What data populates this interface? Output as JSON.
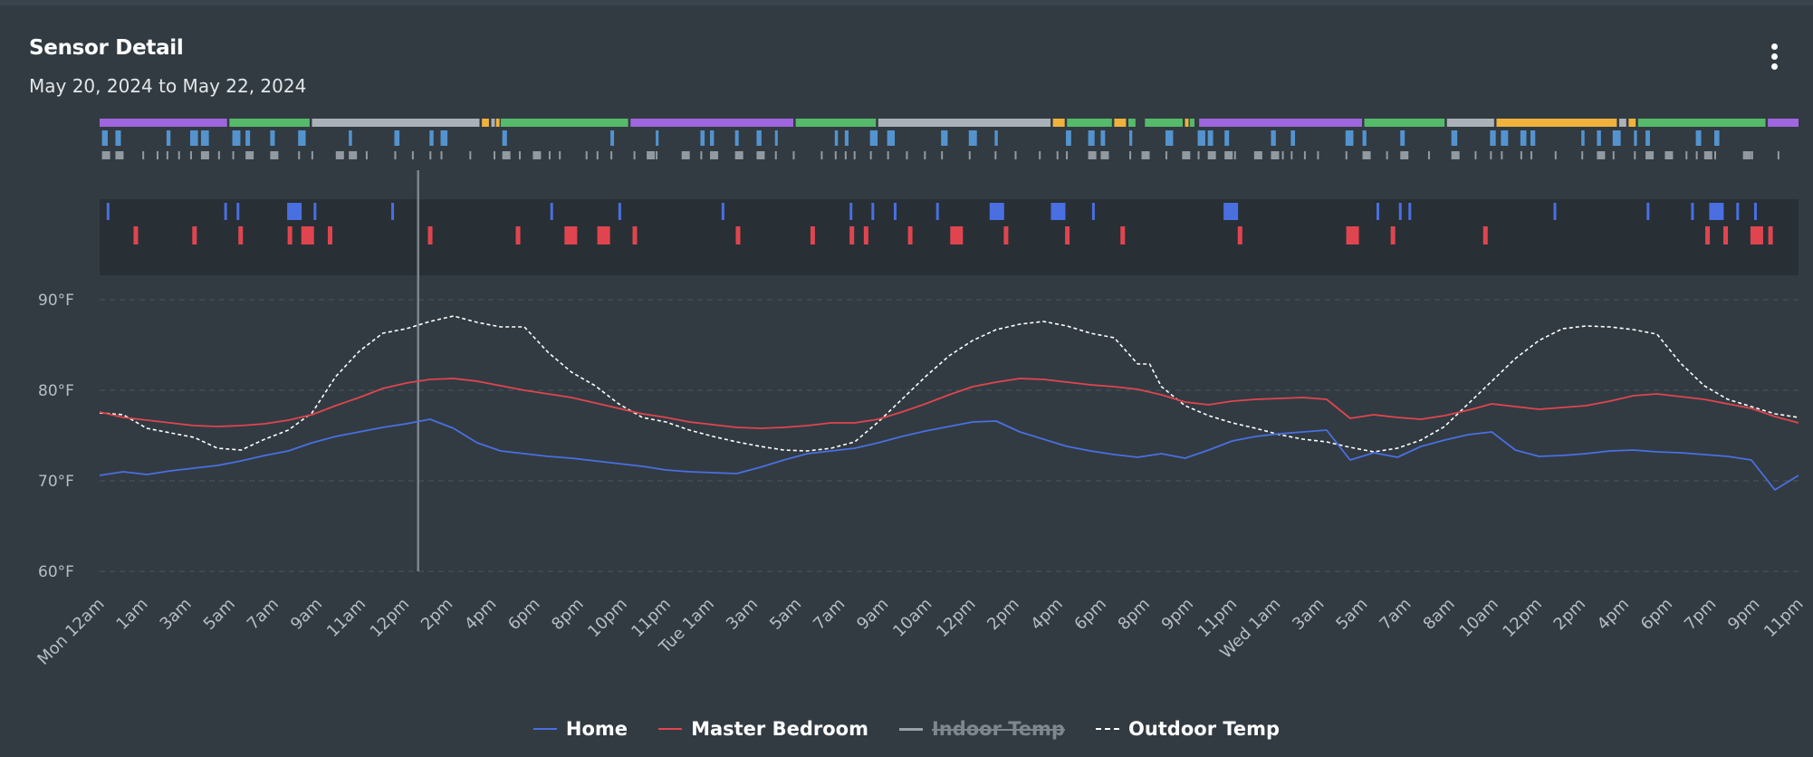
{
  "card": {
    "title": "Sensor Detail",
    "subtitle": "May 20, 2024 to May 22, 2024"
  },
  "colors": {
    "background": "#323b42",
    "home": "#4a6fe0",
    "master_bedroom": "#e0454f",
    "indoor_temp": "#9aa3aa",
    "outdoor_temp": "#ffffff",
    "status_purple": "#a066e0",
    "status_green": "#55bb6a",
    "status_gray": "#aab1b8",
    "status_orange": "#f0b23d",
    "status_blue": "#5aa3e6",
    "motion_blue": "#4a6fe0",
    "motion_red": "#e0454f"
  },
  "chart_data": {
    "type": "line",
    "title": "Sensor Detail",
    "subtitle": "May 20, 2024 to May 22, 2024",
    "y_ticks": [
      "90°F",
      "80°F",
      "70°F",
      "60°F"
    ],
    "ylim": [
      60,
      90
    ],
    "x_tick_labels": [
      "Mon 12am",
      "1am",
      "3am",
      "5am",
      "7am",
      "9am",
      "11am",
      "12pm",
      "2pm",
      "4pm",
      "6pm",
      "8pm",
      "10pm",
      "11pm",
      "Tue 1am",
      "3am",
      "5am",
      "7am",
      "9am",
      "10am",
      "12pm",
      "2pm",
      "4pm",
      "6pm",
      "8pm",
      "9pm",
      "11pm",
      "Wed 1am",
      "3am",
      "5am",
      "7am",
      "8am",
      "10am",
      "12pm",
      "2pm",
      "4pm",
      "6pm",
      "7pm",
      "9pm",
      "11pm"
    ],
    "x_range_hours": [
      0,
      72
    ],
    "cursor_hour": 13.5,
    "legend": [
      {
        "name": "Home",
        "style": "solid",
        "hidden": false
      },
      {
        "name": "Master Bedroom",
        "style": "solid",
        "hidden": false
      },
      {
        "name": "Indoor Temp",
        "style": "solid",
        "hidden": true
      },
      {
        "name": "Outdoor Temp",
        "style": "dashed",
        "hidden": false
      }
    ],
    "series": [
      {
        "name": "Outdoor Temp",
        "points": [
          [
            0,
            77.5
          ],
          [
            1,
            77.3
          ],
          [
            2,
            75.8
          ],
          [
            3,
            75.3
          ],
          [
            4,
            74.8
          ],
          [
            5,
            73.6
          ],
          [
            6,
            73.4
          ],
          [
            7,
            74.6
          ],
          [
            8,
            75.6
          ],
          [
            9,
            77.5
          ],
          [
            10,
            81.5
          ],
          [
            11,
            84.3
          ],
          [
            12,
            86.3
          ],
          [
            13,
            86.8
          ],
          [
            14,
            87.6
          ],
          [
            15,
            88.2
          ],
          [
            16,
            87.5
          ],
          [
            17,
            87.0
          ],
          [
            18,
            87.0
          ],
          [
            19,
            84.2
          ],
          [
            20,
            82.0
          ],
          [
            21,
            80.5
          ],
          [
            22,
            78.5
          ],
          [
            23,
            77.0
          ],
          [
            24,
            76.5
          ],
          [
            25,
            75.6
          ],
          [
            26,
            74.9
          ],
          [
            27,
            74.3
          ],
          [
            28,
            73.8
          ],
          [
            29,
            73.4
          ],
          [
            30,
            73.3
          ],
          [
            31,
            73.6
          ],
          [
            32,
            74.3
          ],
          [
            33,
            76.5
          ],
          [
            34,
            79.0
          ],
          [
            35,
            81.5
          ],
          [
            36,
            83.8
          ],
          [
            37,
            85.5
          ],
          [
            38,
            86.7
          ],
          [
            39,
            87.3
          ],
          [
            40,
            87.6
          ],
          [
            41,
            87.1
          ],
          [
            42,
            86.3
          ],
          [
            43,
            85.8
          ],
          [
            44,
            82.9
          ],
          [
            44.5,
            82.9
          ],
          [
            45,
            80.4
          ],
          [
            46,
            78.3
          ],
          [
            47,
            77.2
          ],
          [
            48,
            76.4
          ],
          [
            49,
            75.8
          ],
          [
            50,
            75.1
          ],
          [
            51,
            74.6
          ],
          [
            52,
            74.3
          ],
          [
            53,
            73.7
          ],
          [
            54,
            73.2
          ],
          [
            55,
            73.6
          ],
          [
            56,
            74.5
          ],
          [
            57,
            76.0
          ],
          [
            58,
            78.5
          ],
          [
            59,
            81.0
          ],
          [
            60,
            83.5
          ],
          [
            61,
            85.5
          ],
          [
            62,
            86.8
          ],
          [
            63,
            87.1
          ],
          [
            64,
            87.0
          ],
          [
            65,
            86.7
          ],
          [
            66,
            86.2
          ],
          [
            67,
            83.0
          ],
          [
            68,
            80.5
          ],
          [
            69,
            79.0
          ],
          [
            70,
            78.2
          ],
          [
            71,
            77.4
          ],
          [
            72,
            77.0
          ]
        ]
      },
      {
        "name": "Master Bedroom",
        "points": [
          [
            0,
            77.6
          ],
          [
            1,
            77.0
          ],
          [
            2,
            76.7
          ],
          [
            3,
            76.4
          ],
          [
            4,
            76.1
          ],
          [
            5,
            76.0
          ],
          [
            6,
            76.1
          ],
          [
            7,
            76.3
          ],
          [
            8,
            76.7
          ],
          [
            9,
            77.3
          ],
          [
            10,
            78.3
          ],
          [
            11,
            79.2
          ],
          [
            12,
            80.2
          ],
          [
            13,
            80.8
          ],
          [
            14,
            81.2
          ],
          [
            15,
            81.3
          ],
          [
            16,
            81.0
          ],
          [
            17,
            80.5
          ],
          [
            18,
            80.0
          ],
          [
            19,
            79.6
          ],
          [
            20,
            79.2
          ],
          [
            21,
            78.6
          ],
          [
            22,
            78.0
          ],
          [
            23,
            77.4
          ],
          [
            24,
            77.0
          ],
          [
            25,
            76.5
          ],
          [
            26,
            76.2
          ],
          [
            27,
            75.9
          ],
          [
            28,
            75.8
          ],
          [
            29,
            75.9
          ],
          [
            30,
            76.1
          ],
          [
            31,
            76.4
          ],
          [
            32,
            76.4
          ],
          [
            33,
            76.8
          ],
          [
            34,
            77.6
          ],
          [
            35,
            78.5
          ],
          [
            36,
            79.5
          ],
          [
            37,
            80.4
          ],
          [
            38,
            80.9
          ],
          [
            39,
            81.3
          ],
          [
            40,
            81.2
          ],
          [
            41,
            80.9
          ],
          [
            42,
            80.6
          ],
          [
            43,
            80.4
          ],
          [
            44,
            80.1
          ],
          [
            45,
            79.5
          ],
          [
            46,
            78.7
          ],
          [
            47,
            78.4
          ],
          [
            48,
            78.8
          ],
          [
            49,
            79.0
          ],
          [
            50,
            79.1
          ],
          [
            51,
            79.2
          ],
          [
            52,
            79.0
          ],
          [
            53,
            76.9
          ],
          [
            54,
            77.3
          ],
          [
            55,
            77.0
          ],
          [
            56,
            76.8
          ],
          [
            57,
            77.2
          ],
          [
            58,
            77.8
          ],
          [
            59,
            78.5
          ],
          [
            60,
            78.2
          ],
          [
            61,
            77.9
          ],
          [
            62,
            78.1
          ],
          [
            63,
            78.3
          ],
          [
            64,
            78.8
          ],
          [
            65,
            79.4
          ],
          [
            66,
            79.6
          ],
          [
            67,
            79.3
          ],
          [
            68,
            79.0
          ],
          [
            69,
            78.5
          ],
          [
            70,
            78.0
          ],
          [
            71,
            77.1
          ],
          [
            72,
            76.4
          ]
        ]
      },
      {
        "name": "Home",
        "points": [
          [
            0,
            70.6
          ],
          [
            1,
            71.0
          ],
          [
            2,
            70.7
          ],
          [
            3,
            71.1
          ],
          [
            4,
            71.4
          ],
          [
            5,
            71.7
          ],
          [
            6,
            72.2
          ],
          [
            7,
            72.8
          ],
          [
            8,
            73.3
          ],
          [
            9,
            74.2
          ],
          [
            10,
            74.9
          ],
          [
            11,
            75.4
          ],
          [
            12,
            75.9
          ],
          [
            13,
            76.3
          ],
          [
            14,
            76.8
          ],
          [
            15,
            75.8
          ],
          [
            16,
            74.2
          ],
          [
            17,
            73.3
          ],
          [
            18,
            73.0
          ],
          [
            19,
            72.7
          ],
          [
            20,
            72.5
          ],
          [
            21,
            72.2
          ],
          [
            22,
            71.9
          ],
          [
            23,
            71.6
          ],
          [
            24,
            71.2
          ],
          [
            25,
            71.0
          ],
          [
            26,
            70.9
          ],
          [
            27,
            70.8
          ],
          [
            28,
            71.5
          ],
          [
            29,
            72.3
          ],
          [
            30,
            73.0
          ],
          [
            31,
            73.3
          ],
          [
            32,
            73.6
          ],
          [
            33,
            74.2
          ],
          [
            34,
            74.9
          ],
          [
            35,
            75.5
          ],
          [
            36,
            76.0
          ],
          [
            37,
            76.5
          ],
          [
            38,
            76.6
          ],
          [
            39,
            75.4
          ],
          [
            40,
            74.6
          ],
          [
            41,
            73.8
          ],
          [
            42,
            73.3
          ],
          [
            43,
            72.9
          ],
          [
            44,
            72.6
          ],
          [
            45,
            73.0
          ],
          [
            46,
            72.5
          ],
          [
            47,
            73.4
          ],
          [
            48,
            74.4
          ],
          [
            49,
            74.9
          ],
          [
            50,
            75.2
          ],
          [
            51,
            75.4
          ],
          [
            52,
            75.6
          ],
          [
            53,
            72.3
          ],
          [
            54,
            73.1
          ],
          [
            55,
            72.6
          ],
          [
            56,
            73.8
          ],
          [
            57,
            74.5
          ],
          [
            58,
            75.1
          ],
          [
            59,
            75.4
          ],
          [
            60,
            73.4
          ],
          [
            61,
            72.7
          ],
          [
            62,
            72.8
          ],
          [
            63,
            73.0
          ],
          [
            64,
            73.3
          ],
          [
            65,
            73.4
          ],
          [
            66,
            73.2
          ],
          [
            67,
            73.1
          ],
          [
            68,
            72.9
          ],
          [
            69,
            72.7
          ],
          [
            70,
            72.3
          ],
          [
            71,
            69.0
          ],
          [
            72,
            70.6
          ]
        ]
      }
    ],
    "status_timeline_row1": [
      {
        "start": 0,
        "end": 5.4,
        "color": "purple"
      },
      {
        "start": 5.5,
        "end": 8.9,
        "color": "green"
      },
      {
        "start": 9.0,
        "end": 16.1,
        "color": "gray"
      },
      {
        "start": 16.2,
        "end": 16.5,
        "color": "orange"
      },
      {
        "start": 16.6,
        "end": 16.75,
        "color": "gray"
      },
      {
        "start": 16.8,
        "end": 16.95,
        "color": "orange"
      },
      {
        "start": 17.0,
        "end": 22.4,
        "color": "green"
      },
      {
        "start": 22.5,
        "end": 29.4,
        "color": "purple"
      },
      {
        "start": 29.5,
        "end": 32.9,
        "color": "green"
      },
      {
        "start": 33.0,
        "end": 40.3,
        "color": "gray"
      },
      {
        "start": 40.4,
        "end": 40.9,
        "color": "orange"
      },
      {
        "start": 41.0,
        "end": 42.9,
        "color": "green"
      },
      {
        "start": 43.0,
        "end": 43.5,
        "color": "orange"
      },
      {
        "start": 43.6,
        "end": 43.9,
        "color": "green"
      },
      {
        "start": 44.3,
        "end": 45.9,
        "color": "green"
      },
      {
        "start": 46.0,
        "end": 46.15,
        "color": "orange"
      },
      {
        "start": 46.2,
        "end": 46.4,
        "color": "green"
      },
      {
        "start": 46.6,
        "end": 53.5,
        "color": "purple"
      },
      {
        "start": 53.6,
        "end": 57.0,
        "color": "green"
      },
      {
        "start": 57.1,
        "end": 59.1,
        "color": "gray"
      },
      {
        "start": 59.2,
        "end": 64.3,
        "color": "orange"
      },
      {
        "start": 64.4,
        "end": 64.7,
        "color": "gray"
      },
      {
        "start": 64.8,
        "end": 65.1,
        "color": "orange"
      },
      {
        "start": 65.2,
        "end": 70.6,
        "color": "green"
      },
      {
        "start": 70.7,
        "end": 72.0,
        "color": "purple"
      }
    ]
  },
  "legend_labels": {
    "home": "Home",
    "master_bedroom": "Master Bedroom",
    "indoor_temp": "Indoor Temp",
    "outdoor_temp": "Outdoor Temp"
  }
}
